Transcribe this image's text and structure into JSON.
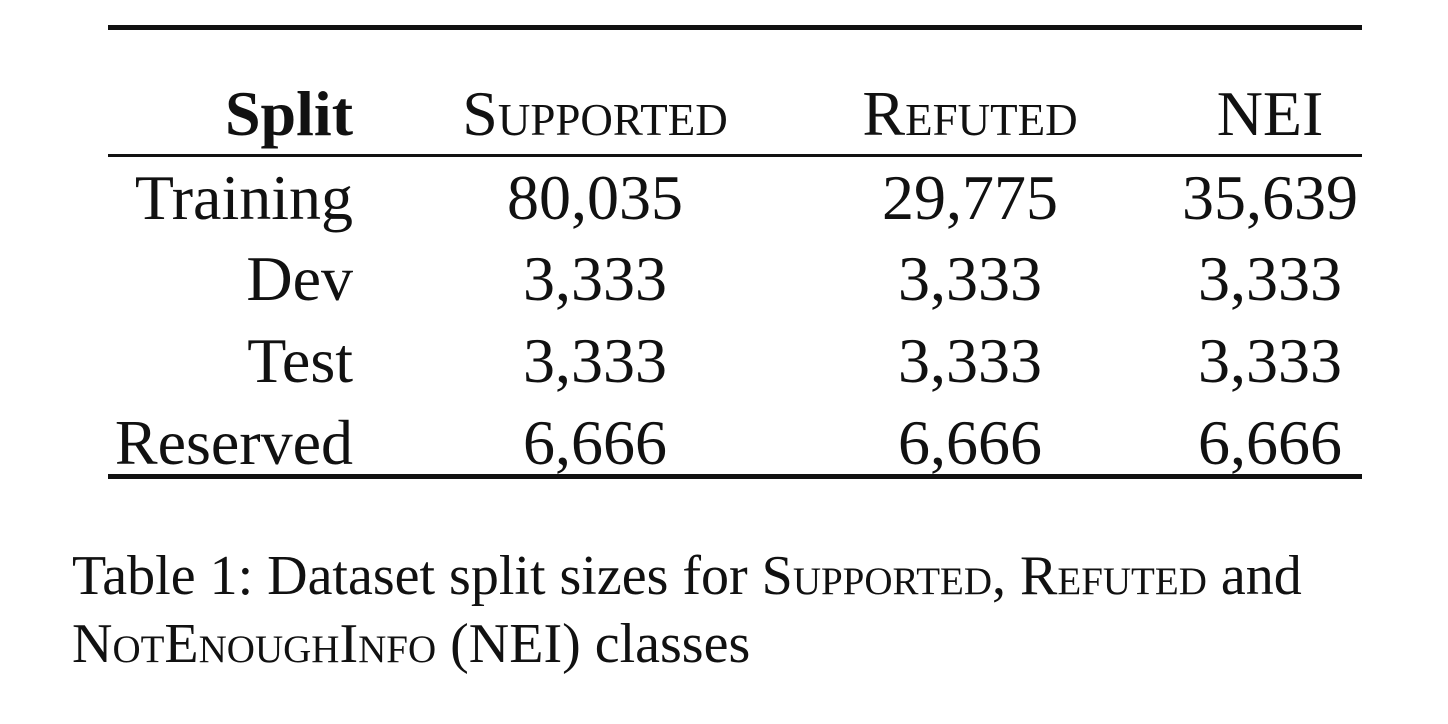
{
  "table": {
    "headers": {
      "split": "Split",
      "supported": "Supported",
      "refuted": "Refuted",
      "nei": "NEI"
    },
    "rows": [
      {
        "split": "Training",
        "supported": "80,035",
        "refuted": "29,775",
        "nei": "35,639"
      },
      {
        "split": "Dev",
        "supported": "3,333",
        "refuted": "3,333",
        "nei": "3,333"
      },
      {
        "split": "Test",
        "supported": "3,333",
        "refuted": "3,333",
        "nei": "3,333"
      },
      {
        "split": "Reserved",
        "supported": "6,666",
        "refuted": "6,666",
        "nei": "6,666"
      }
    ]
  },
  "caption": {
    "prefix": "Table 1: Dataset split sizes for ",
    "term1": "Supported",
    "sep1": ", ",
    "term2": "Refuted",
    "sep2": " and ",
    "term3": "NotEnoughInfo",
    "suffix": " (NEI) classes"
  }
}
